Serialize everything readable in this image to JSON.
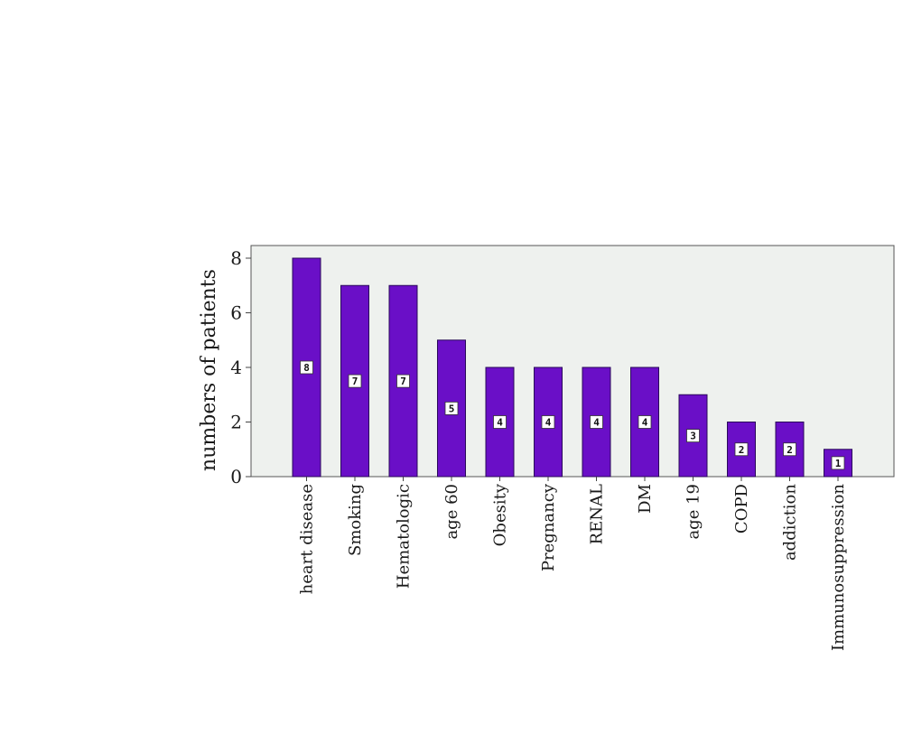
{
  "chart_data": {
    "type": "bar",
    "title": "",
    "xlabel": "",
    "ylabel": "numbers of patients",
    "categories": [
      "heart disease",
      "Smoking",
      "Hematologic",
      "age 60",
      "Obesity",
      "Pregnancy",
      "RENAL",
      "DM",
      "age 19",
      "COPD",
      "addiction",
      "Immunosuppression"
    ],
    "values": [
      8,
      7,
      7,
      5,
      4,
      4,
      4,
      4,
      3,
      2,
      2,
      1
    ],
    "data_labels": [
      "8",
      "7",
      "7",
      "5",
      "4",
      "4",
      "4",
      "4",
      "3",
      "2",
      "2",
      "1"
    ],
    "ylim": [
      0,
      8
    ],
    "yticks": [
      "0",
      "2",
      "4",
      "6",
      "8"
    ],
    "grid": false,
    "bar_color": "#6a0fc7",
    "bar_edge_color": "#2a0a5a",
    "plot_background": "#eef1ee"
  }
}
